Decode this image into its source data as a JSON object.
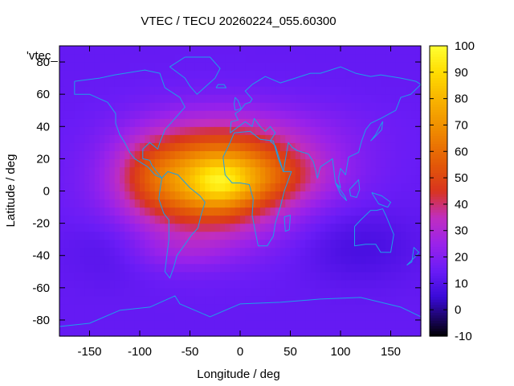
{
  "chart_data": {
    "type": "heatmap",
    "title": "VTEC / TECU 20260224_055.60300",
    "xlabel": "Longitude / deg",
    "ylabel": "Latitude / deg",
    "series_key": "'vtec_",
    "xlim": [
      -180,
      180
    ],
    "ylim": [
      -90,
      90
    ],
    "xticks": [
      -150,
      -100,
      -50,
      0,
      50,
      100,
      150
    ],
    "yticks": [
      -80,
      -60,
      -40,
      -20,
      0,
      20,
      40,
      60,
      80
    ],
    "colorbar": {
      "range": [
        -10,
        100
      ],
      "ticks": [
        -10,
        0,
        10,
        20,
        30,
        40,
        50,
        60,
        70,
        80,
        90,
        100
      ],
      "stops": [
        {
          "v": -10,
          "color": "#000000"
        },
        {
          "v": 5,
          "color": "#3a0ad8"
        },
        {
          "v": 15,
          "color": "#6a1cf6"
        },
        {
          "v": 25,
          "color": "#9a22ea"
        },
        {
          "v": 35,
          "color": "#c02ec0"
        },
        {
          "v": 45,
          "color": "#d8341f"
        },
        {
          "v": 55,
          "color": "#e35808"
        },
        {
          "v": 68,
          "color": "#ef8a00"
        },
        {
          "v": 80,
          "color": "#f8b400"
        },
        {
          "v": 90,
          "color": "#ffdc00"
        },
        {
          "v": 100,
          "color": "#ffff33"
        }
      ]
    },
    "field": {
      "grid_step_deg": 5,
      "background_tecu": 14,
      "features": [
        {
          "lon": -35,
          "lat": 5,
          "sigma_lon": 55,
          "sigma_lat": 23,
          "amp": 52
        },
        {
          "lon": -20,
          "lat": 5,
          "sigma_lon": 20,
          "sigma_lat": 10,
          "amp": 16
        },
        {
          "lon": 20,
          "lat": 10,
          "sigma_lon": 55,
          "sigma_lat": 13,
          "amp": 22
        },
        {
          "lon": -90,
          "lat": 12,
          "sigma_lon": 25,
          "sigma_lat": 16,
          "amp": 10
        },
        {
          "lon": 20,
          "lat": 35,
          "sigma_lon": 70,
          "sigma_lat": 14,
          "amp": 10
        },
        {
          "lon": -60,
          "lat": -38,
          "sigma_lon": 35,
          "sigma_lat": 8,
          "amp": 6
        },
        {
          "lon": 120,
          "lat": -35,
          "sigma_lon": 40,
          "sigma_lat": 15,
          "amp": -6
        },
        {
          "lon": -130,
          "lat": -35,
          "sigma_lon": 30,
          "sigma_lat": 15,
          "amp": -4
        }
      ]
    },
    "coastlines": [
      {
        "name": "north-america",
        "points": [
          [
            -165,
            68
          ],
          [
            -140,
            70
          ],
          [
            -125,
            72
          ],
          [
            -95,
            75
          ],
          [
            -80,
            73
          ],
          [
            -75,
            64
          ],
          [
            -60,
            58
          ],
          [
            -55,
            52
          ],
          [
            -65,
            45
          ],
          [
            -75,
            38
          ],
          [
            -80,
            30
          ],
          [
            -82,
            26
          ],
          [
            -90,
            30
          ],
          [
            -97,
            26
          ],
          [
            -97,
            20
          ],
          [
            -90,
            19
          ],
          [
            -88,
            16
          ],
          [
            -83,
            12
          ],
          [
            -78,
            8
          ],
          [
            -85,
            10
          ],
          [
            -92,
            15
          ],
          [
            -105,
            20
          ],
          [
            -110,
            24
          ],
          [
            -115,
            30
          ],
          [
            -120,
            35
          ],
          [
            -124,
            42
          ],
          [
            -124,
            48
          ],
          [
            -132,
            55
          ],
          [
            -150,
            60
          ],
          [
            -165,
            60
          ],
          [
            -165,
            68
          ]
        ]
      },
      {
        "name": "greenland",
        "points": [
          [
            -55,
            83
          ],
          [
            -30,
            83
          ],
          [
            -20,
            76
          ],
          [
            -25,
            70
          ],
          [
            -43,
            60
          ],
          [
            -50,
            65
          ],
          [
            -55,
            70
          ],
          [
            -70,
            77
          ],
          [
            -55,
            83
          ]
        ]
      },
      {
        "name": "south-america",
        "points": [
          [
            -78,
            8
          ],
          [
            -72,
            12
          ],
          [
            -62,
            10
          ],
          [
            -50,
            2
          ],
          [
            -40,
            -3
          ],
          [
            -35,
            -7
          ],
          [
            -39,
            -15
          ],
          [
            -42,
            -23
          ],
          [
            -48,
            -27
          ],
          [
            -56,
            -34
          ],
          [
            -63,
            -40
          ],
          [
            -66,
            -47
          ],
          [
            -70,
            -54
          ],
          [
            -75,
            -50
          ],
          [
            -73,
            -40
          ],
          [
            -71,
            -30
          ],
          [
            -71,
            -18
          ],
          [
            -76,
            -14
          ],
          [
            -81,
            -5
          ],
          [
            -80,
            0
          ],
          [
            -78,
            8
          ]
        ]
      },
      {
        "name": "eurasia",
        "points": [
          [
            -10,
            36
          ],
          [
            -9,
            43
          ],
          [
            -2,
            44
          ],
          [
            -5,
            48
          ],
          [
            0,
            50
          ],
          [
            5,
            54
          ],
          [
            10,
            55
          ],
          [
            12,
            57
          ],
          [
            5,
            62
          ],
          [
            12,
            66
          ],
          [
            25,
            71
          ],
          [
            40,
            67
          ],
          [
            45,
            68
          ],
          [
            55,
            70
          ],
          [
            70,
            73
          ],
          [
            80,
            73
          ],
          [
            100,
            77
          ],
          [
            115,
            73
          ],
          [
            130,
            71
          ],
          [
            140,
            72
          ],
          [
            160,
            70
          ],
          [
            175,
            68
          ],
          [
            180,
            66
          ],
          [
            170,
            60
          ],
          [
            160,
            58
          ],
          [
            155,
            50
          ],
          [
            140,
            45
          ],
          [
            130,
            42
          ],
          [
            125,
            38
          ],
          [
            121,
            31
          ],
          [
            118,
            24
          ],
          [
            108,
            21
          ],
          [
            105,
            10
          ],
          [
            100,
            14
          ],
          [
            98,
            8
          ],
          [
            100,
            2
          ],
          [
            95,
            5
          ],
          [
            92,
            20
          ],
          [
            80,
            15
          ],
          [
            77,
            8
          ],
          [
            73,
            18
          ],
          [
            68,
            23
          ],
          [
            57,
            25
          ],
          [
            52,
            27
          ],
          [
            48,
            30
          ],
          [
            43,
            12
          ],
          [
            35,
            28
          ],
          [
            30,
            31
          ],
          [
            35,
            36
          ],
          [
            30,
            40
          ],
          [
            25,
            37
          ],
          [
            20,
            40
          ],
          [
            14,
            45
          ],
          [
            12,
            40
          ],
          [
            5,
            43
          ],
          [
            -10,
            36
          ]
        ]
      },
      {
        "name": "africa",
        "points": [
          [
            -17,
            21
          ],
          [
            -10,
            30
          ],
          [
            -6,
            36
          ],
          [
            10,
            37
          ],
          [
            20,
            32
          ],
          [
            33,
            31
          ],
          [
            38,
            20
          ],
          [
            43,
            12
          ],
          [
            51,
            12
          ],
          [
            44,
            0
          ],
          [
            40,
            -10
          ],
          [
            35,
            -20
          ],
          [
            33,
            -28
          ],
          [
            27,
            -34
          ],
          [
            18,
            -34
          ],
          [
            15,
            -25
          ],
          [
            12,
            -15
          ],
          [
            13,
            -5
          ],
          [
            9,
            4
          ],
          [
            0,
            5
          ],
          [
            -8,
            5
          ],
          [
            -15,
            10
          ],
          [
            -17,
            21
          ]
        ]
      },
      {
        "name": "madagascar",
        "points": [
          [
            44,
            -16
          ],
          [
            50,
            -15
          ],
          [
            49,
            -24
          ],
          [
            45,
            -25
          ],
          [
            44,
            -16
          ]
        ]
      },
      {
        "name": "australia",
        "points": [
          [
            114,
            -22
          ],
          [
            114,
            -34
          ],
          [
            125,
            -33
          ],
          [
            135,
            -33
          ],
          [
            140,
            -38
          ],
          [
            150,
            -38
          ],
          [
            153,
            -27
          ],
          [
            145,
            -15
          ],
          [
            142,
            -11
          ],
          [
            136,
            -12
          ],
          [
            130,
            -12
          ],
          [
            120,
            -18
          ],
          [
            114,
            -22
          ]
        ]
      },
      {
        "name": "new-zealand",
        "points": [
          [
            166,
            -46
          ],
          [
            174,
            -41
          ],
          [
            178,
            -38
          ],
          [
            173,
            -35
          ],
          [
            171,
            -44
          ],
          [
            166,
            -46
          ]
        ]
      },
      {
        "name": "borneo",
        "points": [
          [
            109,
            1
          ],
          [
            118,
            7
          ],
          [
            119,
            1
          ],
          [
            116,
            -4
          ],
          [
            110,
            -3
          ],
          [
            109,
            1
          ]
        ]
      },
      {
        "name": "sumatra",
        "points": [
          [
            95,
            5
          ],
          [
            104,
            -3
          ],
          [
            106,
            -6
          ],
          [
            100,
            -2
          ],
          [
            95,
            5
          ]
        ]
      },
      {
        "name": "new-guinea",
        "points": [
          [
            131,
            -1
          ],
          [
            141,
            -3
          ],
          [
            150,
            -7
          ],
          [
            147,
            -10
          ],
          [
            138,
            -8
          ],
          [
            131,
            -1
          ]
        ]
      },
      {
        "name": "japan",
        "points": [
          [
            130,
            31
          ],
          [
            135,
            34
          ],
          [
            141,
            38
          ],
          [
            142,
            43
          ],
          [
            140,
            41
          ],
          [
            135,
            35
          ],
          [
            130,
            31
          ]
        ]
      },
      {
        "name": "british-isles",
        "points": [
          [
            -5,
            50
          ],
          [
            1,
            51
          ],
          [
            -2,
            56
          ],
          [
            -5,
            58
          ],
          [
            -6,
            54
          ],
          [
            -5,
            50
          ]
        ]
      },
      {
        "name": "iceland",
        "points": [
          [
            -24,
            64
          ],
          [
            -14,
            64
          ],
          [
            -16,
            66
          ],
          [
            -22,
            66
          ],
          [
            -24,
            64
          ]
        ]
      },
      {
        "name": "antarctica",
        "points": [
          [
            -180,
            -84
          ],
          [
            -150,
            -82
          ],
          [
            -120,
            -74
          ],
          [
            -90,
            -72
          ],
          [
            -65,
            -65
          ],
          [
            -60,
            -70
          ],
          [
            -30,
            -78
          ],
          [
            0,
            -70
          ],
          [
            40,
            -69
          ],
          [
            80,
            -67
          ],
          [
            120,
            -66
          ],
          [
            160,
            -72
          ],
          [
            180,
            -78
          ]
        ]
      }
    ]
  }
}
